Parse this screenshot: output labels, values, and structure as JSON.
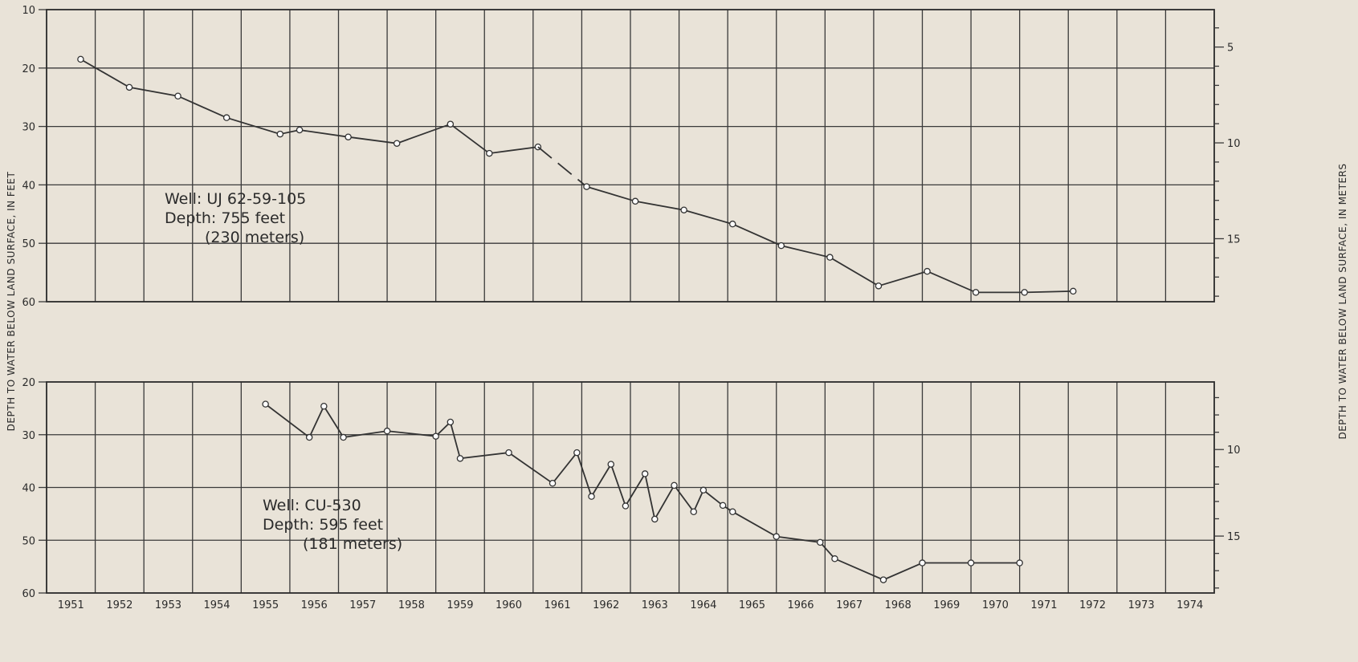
{
  "chart_data": [
    {
      "type": "line",
      "annotation": [
        "Well: UJ 62-59-105",
        "Depth: 755 feet",
        "(230 meters)"
      ],
      "ylabel_left": "DEPTH TO WATER BELOW LAND SURFACE, IN FEET",
      "ylabel_right": "DEPTH TO WATER BELOW LAND SURFACE, IN METERS",
      "ylim": [
        10,
        60
      ],
      "y_inverted": true,
      "yticks_left": [
        "10",
        "20",
        "30",
        "40",
        "50",
        "60"
      ],
      "yticks_right": [
        "5",
        "10",
        "15"
      ],
      "grid": true,
      "series": [
        {
          "x": [
            1951.2,
            1952.2,
            1953.2,
            1954.2,
            1955.3,
            1955.7,
            1956.7,
            1957.7,
            1958.8,
            1959.6,
            1960.6
          ],
          "y": [
            18.5,
            23.3,
            24.8,
            28.5,
            31.3,
            30.6,
            31.8,
            32.9,
            29.6,
            34.6,
            33.5
          ]
        },
        {
          "style": "dashed",
          "x": [
            1960.6,
            1961.6
          ],
          "y": [
            33.5,
            40.3
          ]
        },
        {
          "x": [
            1961.6,
            1962.6,
            1963.6,
            1964.6,
            1965.6,
            1966.6,
            1967.6,
            1968.6,
            1969.6,
            1970.6,
            1971.6
          ],
          "y": [
            40.3,
            42.8,
            44.3,
            46.7,
            50.4,
            52.4,
            57.3,
            54.8,
            58.4,
            58.4,
            58.2
          ]
        }
      ]
    },
    {
      "type": "line",
      "annotation": [
        "Well: CU-530",
        "Depth: 595 feet",
        "(181 meters)"
      ],
      "ylim": [
        20,
        60
      ],
      "y_inverted": true,
      "yticks_left": [
        "20",
        "30",
        "40",
        "50",
        "60"
      ],
      "yticks_right": [
        "10",
        "15"
      ],
      "grid": true,
      "series": [
        {
          "x": [
            1955.0,
            1955.9,
            1956.2,
            1956.6,
            1957.5,
            1958.5,
            1958.8,
            1959.0,
            1960.0,
            1960.9,
            1961.4,
            1961.7,
            1962.1,
            1962.4,
            1962.8,
            1963.0,
            1963.4,
            1963.8,
            1964.0,
            1964.4,
            1964.6,
            1965.5,
            1966.4,
            1966.7,
            1967.7,
            1968.5,
            1969.5,
            1970.5
          ],
          "y": [
            24.2,
            30.5,
            24.6,
            30.5,
            29.3,
            30.3,
            27.6,
            34.5,
            33.4,
            39.2,
            33.4,
            41.7,
            35.6,
            43.5,
            37.4,
            46.0,
            39.6,
            44.6,
            40.5,
            43.4,
            44.6,
            49.3,
            50.4,
            53.5,
            57.5,
            54.3,
            54.3,
            54.3
          ]
        }
      ]
    }
  ],
  "xticks": [
    "1951",
    "1952",
    "1953",
    "1954",
    "1955",
    "1956",
    "1957",
    "1958",
    "1959",
    "1960",
    "1961",
    "1962",
    "1963",
    "1964",
    "1965",
    "1966",
    "1967",
    "1968",
    "1969",
    "1970",
    "1971",
    "1972",
    "1973",
    "1974"
  ]
}
